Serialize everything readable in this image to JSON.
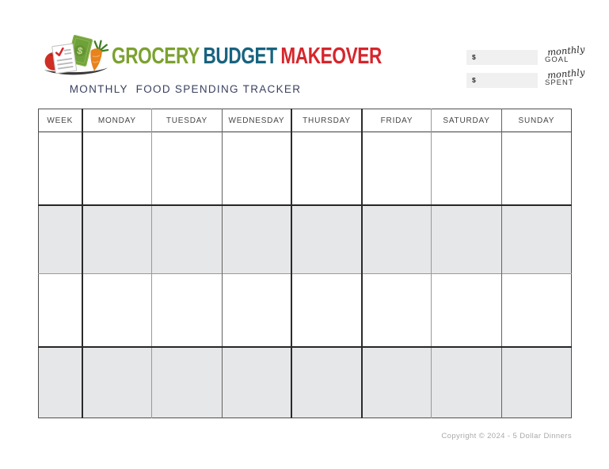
{
  "logo": {
    "word1": "GROCERY",
    "word2": "BUDGET",
    "word3": "MAKEOVER",
    "colors": {
      "word1": "#7ca12f",
      "word2": "#17637f",
      "word3": "#d5262c"
    },
    "icon_colors": {
      "tomato": "#cf2e24",
      "dollar_bill": "#6fa13a",
      "carrot": "#e8821c",
      "carrot_greens": "#3f7d23",
      "checkmark": "#d5262c",
      "base": "#3a3a3a"
    }
  },
  "subtitle": {
    "text": "MONTHLY  FOOD SPENDING TRACKER",
    "color": "#3a4160"
  },
  "summary": {
    "goal": {
      "currency": "$",
      "script_label": "monthly",
      "label": "GOAL",
      "value": ""
    },
    "spent": {
      "currency": "$",
      "script_label": "monthly",
      "label": "SPENT",
      "value": ""
    }
  },
  "table": {
    "headers": [
      "WEEK",
      "MONDAY",
      "TUESDAY",
      "WEDNESDAY",
      "THURSDAY",
      "FRIDAY",
      "SATURDAY",
      "SUNDAY"
    ],
    "row_count": 4,
    "row_shading": [
      "white",
      "shaded",
      "white",
      "shaded"
    ],
    "shaded_row_color": "#e6e7e8"
  },
  "footer": {
    "copyright": "Copyright © 2024 - 5 Dollar Dinners"
  }
}
